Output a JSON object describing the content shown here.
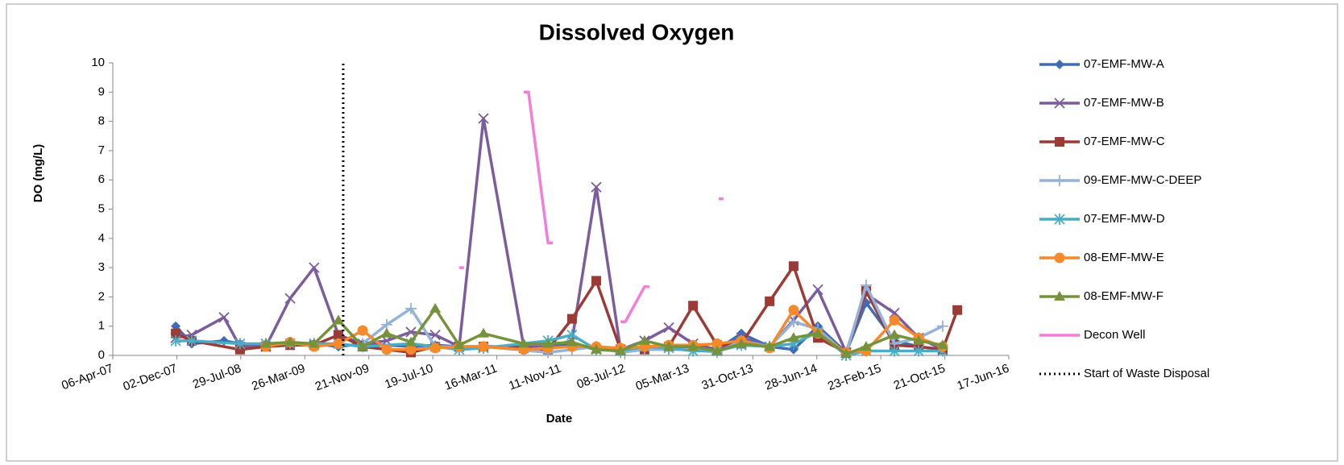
{
  "chart_data": {
    "type": "line",
    "title": "Dissolved Oxygen",
    "x_label": "Date",
    "y_label": "DO (mg/L)",
    "xlim": [
      "2007-04-06",
      "2016-06-17"
    ],
    "xticks": [
      {
        "value": "2007-04-06",
        "label": "06-Apr-07"
      },
      {
        "value": "2007-12-02",
        "label": "02-Dec-07"
      },
      {
        "value": "2008-07-29",
        "label": "29-Jul-08"
      },
      {
        "value": "2009-03-26",
        "label": "26-Mar-09"
      },
      {
        "value": "2009-11-21",
        "label": "21-Nov-09"
      },
      {
        "value": "2010-07-19",
        "label": "19-Jul-10"
      },
      {
        "value": "2011-03-16",
        "label": "16-Mar-11"
      },
      {
        "value": "2011-11-11",
        "label": "11-Nov-11"
      },
      {
        "value": "2012-07-08",
        "label": "08-Jul-12"
      },
      {
        "value": "2013-03-05",
        "label": "05-Mar-13"
      },
      {
        "value": "2013-10-31",
        "label": "31-Oct-13"
      },
      {
        "value": "2014-06-28",
        "label": "28-Jun-14"
      },
      {
        "value": "2015-02-23",
        "label": "23-Feb-15"
      },
      {
        "value": "2015-10-21",
        "label": "21-Oct-15"
      },
      {
        "value": "2016-06-17",
        "label": "17-Jun-16"
      }
    ],
    "ylim": [
      0,
      10
    ],
    "yticks": [
      0,
      1,
      2,
      3,
      4,
      5,
      6,
      7,
      8,
      9,
      10
    ],
    "series": [
      {
        "name": "07-EMF-MW-A",
        "color": "#3e6db5",
        "marker": "diamond",
        "x": [
          "2007-11-28",
          "2008-01-27",
          "2008-05-27",
          "2008-07-26",
          "2008-10-31",
          "2009-01-30",
          "2009-04-30",
          "2009-07-30",
          "2009-10-29",
          "2010-04-28",
          "2010-07-28",
          "2010-10-26",
          "2011-01-25",
          "2011-09-24",
          "2011-12-23",
          "2012-03-23",
          "2012-06-22",
          "2012-12-20",
          "2013-06-19",
          "2013-09-18",
          "2014-01-02",
          "2014-04-02",
          "2014-07-02",
          "2014-10-16",
          "2014-12-30",
          "2015-04-15",
          "2015-07-15",
          "2015-10-13"
        ],
        "values": [
          1.0,
          0.4,
          0.5,
          0.4,
          0.35,
          0.4,
          0.4,
          0.3,
          0.4,
          0.3,
          0.35,
          0.3,
          0.3,
          0.3,
          0.4,
          0.2,
          0.2,
          0.3,
          0.2,
          0.75,
          0.3,
          0.2,
          1.0,
          0.1,
          1.8,
          0.5,
          0.3,
          0.2
        ]
      },
      {
        "name": "07-EMF-MW-B",
        "color": "#7b5c9c",
        "marker": "x",
        "x": [
          "2007-11-28",
          "2008-01-27",
          "2008-05-27",
          "2008-07-26",
          "2008-10-31",
          "2009-01-30",
          "2009-04-30",
          "2009-07-30",
          "2009-10-29",
          "2010-01-27",
          "2010-04-28",
          "2010-07-28",
          "2010-10-26",
          "2011-01-25",
          "2011-06-25",
          "2011-09-24",
          "2011-12-23",
          "2012-03-23",
          "2012-06-22",
          "2012-09-20",
          "2012-12-20",
          "2013-03-21",
          "2013-06-19",
          "2013-09-18",
          "2014-01-02",
          "2014-04-02",
          "2014-07-02",
          "2014-10-16",
          "2014-12-30",
          "2015-04-15",
          "2015-07-15",
          "2015-10-13"
        ],
        "values": [
          0.6,
          0.7,
          1.3,
          0.3,
          0.3,
          1.95,
          3.0,
          0.7,
          0.4,
          0.5,
          0.8,
          0.7,
          0.3,
          8.1,
          0.3,
          0.3,
          0.5,
          5.75,
          0.2,
          0.5,
          0.95,
          0.4,
          0.2,
          0.6,
          0.3,
          1.2,
          2.25,
          0.1,
          2.1,
          1.45,
          0.6,
          0.2
        ]
      },
      {
        "name": "07-EMF-MW-C",
        "color": "#9c3a36",
        "marker": "square",
        "x": [
          "2007-11-28",
          "2008-01-27",
          "2008-07-26",
          "2008-10-31",
          "2009-01-30",
          "2009-04-30",
          "2009-07-30",
          "2009-10-29",
          "2010-04-28",
          "2010-07-28",
          "2010-10-26",
          "2011-01-25",
          "2011-06-25",
          "2011-09-24",
          "2011-12-23",
          "2012-03-23",
          "2012-06-22",
          "2012-09-20",
          "2012-12-20",
          "2013-03-21",
          "2013-06-19",
          "2013-09-18",
          "2014-01-02",
          "2014-04-02",
          "2014-07-02",
          "2014-10-16",
          "2014-12-30",
          "2015-04-15",
          "2015-07-15",
          "2015-10-13",
          "2015-12-07"
        ],
        "values": [
          0.75,
          0.5,
          0.2,
          0.3,
          0.35,
          0.35,
          0.7,
          0.3,
          0.1,
          0.3,
          0.3,
          0.3,
          0.25,
          0.2,
          1.25,
          2.55,
          0.2,
          0.2,
          0.3,
          1.7,
          0.35,
          0.4,
          1.85,
          3.05,
          0.6,
          0.1,
          2.2,
          0.35,
          0.3,
          0.2,
          1.55
        ]
      },
      {
        "name": "09-EMF-MW-C-DEEP",
        "color": "#95b2d8",
        "marker": "plus",
        "x": [
          "2009-10-29",
          "2010-01-27",
          "2010-04-28",
          "2010-07-28",
          "2010-10-26",
          "2011-01-25",
          "2011-09-24",
          "2011-12-23",
          "2012-03-23",
          "2012-06-22",
          "2012-09-20",
          "2012-12-20",
          "2013-03-21",
          "2013-06-19",
          "2013-09-18",
          "2014-01-02",
          "2014-04-02",
          "2014-07-02",
          "2014-10-16",
          "2014-12-30",
          "2015-04-15",
          "2015-07-15",
          "2015-10-13"
        ],
        "values": [
          0.4,
          1.05,
          1.6,
          0.3,
          0.3,
          0.3,
          0.1,
          0.2,
          0.3,
          0.1,
          0.2,
          0.2,
          0.2,
          0.1,
          0.5,
          0.3,
          1.15,
          0.9,
          0.05,
          2.4,
          0.4,
          0.6,
          1.0
        ]
      },
      {
        "name": "07-EMF-MW-D",
        "color": "#4aacc5",
        "marker": "asterisk",
        "x": [
          "2007-11-28",
          "2008-01-27",
          "2008-07-26",
          "2008-10-31",
          "2009-01-30",
          "2009-04-30",
          "2009-07-30",
          "2009-10-29",
          "2010-04-28",
          "2010-07-28",
          "2010-10-26",
          "2011-01-25",
          "2011-09-24",
          "2011-12-23",
          "2012-03-23",
          "2012-06-22",
          "2012-09-20",
          "2012-12-20",
          "2013-03-21",
          "2013-06-19",
          "2013-09-18",
          "2014-01-02",
          "2014-04-02",
          "2014-07-02",
          "2014-10-16",
          "2014-12-30",
          "2015-04-15",
          "2015-07-15",
          "2015-10-13"
        ],
        "values": [
          0.5,
          0.5,
          0.4,
          0.4,
          0.4,
          0.4,
          0.4,
          0.3,
          0.4,
          0.3,
          0.2,
          0.25,
          0.5,
          0.7,
          0.2,
          0.15,
          0.3,
          0.25,
          0.15,
          0.15,
          0.35,
          0.3,
          0.4,
          0.8,
          0.0,
          0.15,
          0.15,
          0.15,
          0.15
        ]
      },
      {
        "name": "08-EMF-MW-E",
        "color": "#f68a2a",
        "marker": "circle",
        "x": [
          "2008-10-31",
          "2009-01-30",
          "2009-04-30",
          "2009-07-30",
          "2009-10-29",
          "2010-01-27",
          "2010-04-28",
          "2010-07-28",
          "2010-10-26",
          "2011-01-25",
          "2011-06-25",
          "2011-09-24",
          "2011-12-23",
          "2012-03-23",
          "2012-06-22",
          "2012-09-20",
          "2012-12-20",
          "2013-03-21",
          "2013-06-19",
          "2013-09-18",
          "2014-01-02",
          "2014-04-02",
          "2014-07-02",
          "2014-10-16",
          "2014-12-30",
          "2015-04-15",
          "2015-07-15",
          "2015-10-13"
        ],
        "values": [
          0.3,
          0.45,
          0.3,
          0.4,
          0.85,
          0.2,
          0.2,
          0.25,
          0.3,
          0.3,
          0.2,
          0.25,
          0.3,
          0.3,
          0.25,
          0.3,
          0.35,
          0.35,
          0.4,
          0.5,
          0.25,
          1.55,
          0.75,
          0.1,
          0.15,
          1.2,
          0.6,
          0.3
        ]
      },
      {
        "name": "08-EMF-MW-F",
        "color": "#76933c",
        "marker": "triangle",
        "x": [
          "2008-10-31",
          "2009-01-30",
          "2009-04-30",
          "2009-07-30",
          "2009-10-29",
          "2010-01-27",
          "2010-04-28",
          "2010-07-28",
          "2010-10-26",
          "2011-01-25",
          "2011-06-25",
          "2011-09-24",
          "2011-12-23",
          "2012-03-23",
          "2012-06-22",
          "2012-09-20",
          "2012-12-20",
          "2013-03-21",
          "2013-06-19",
          "2013-09-18",
          "2014-01-02",
          "2014-04-02",
          "2014-07-02",
          "2014-10-16",
          "2014-12-30",
          "2015-04-15",
          "2015-07-15",
          "2015-10-13"
        ],
        "values": [
          0.4,
          0.45,
          0.4,
          1.2,
          0.3,
          0.75,
          0.45,
          1.6,
          0.35,
          0.75,
          0.4,
          0.4,
          0.45,
          0.2,
          0.15,
          0.5,
          0.3,
          0.3,
          0.15,
          0.4,
          0.3,
          0.6,
          0.75,
          0.05,
          0.3,
          0.7,
          0.5,
          0.35
        ]
      },
      {
        "name": "Decon Well",
        "color": "#f47ddb",
        "marker": "none",
        "x": [
          "2010-10-26",
          "2010-11-13",
          null,
          "2011-06-25",
          "2011-07-13",
          "2011-09-24",
          "2011-10-12",
          null,
          "2012-06-22",
          "2012-07-10",
          "2012-09-20",
          "2012-10-08",
          null,
          "2013-06-25",
          "2013-07-13"
        ],
        "values": [
          3.0,
          3.0,
          null,
          9.0,
          9.0,
          3.85,
          3.85,
          null,
          1.15,
          1.15,
          2.35,
          2.35,
          null,
          5.35,
          5.35
        ]
      }
    ],
    "vlines": [
      {
        "name": "Start of Waste Disposal",
        "color": "#000000",
        "x": "2009-08-17"
      }
    ]
  }
}
